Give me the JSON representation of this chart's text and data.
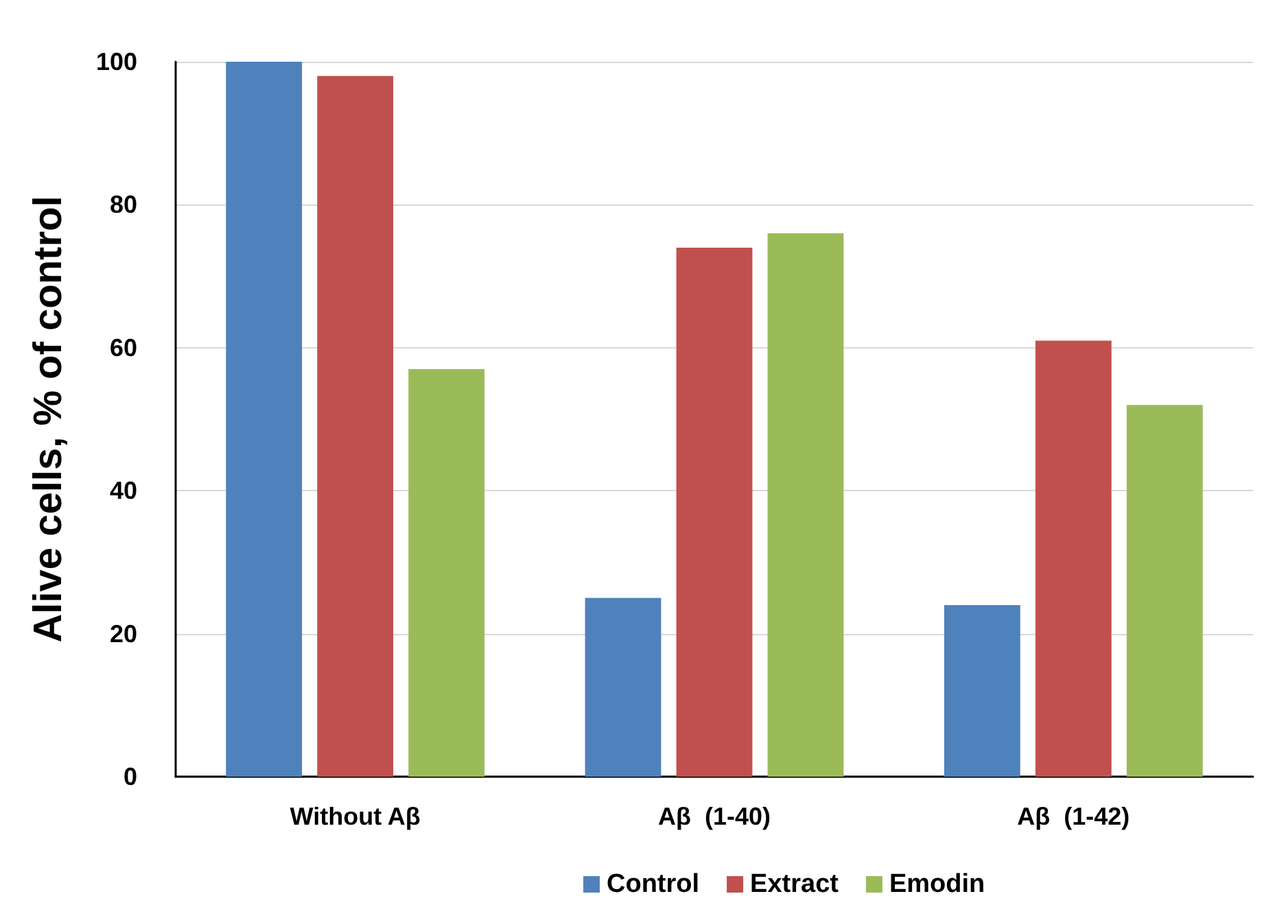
{
  "chart_data": {
    "type": "bar",
    "ylabel": "Alive cells, % of control",
    "categories": [
      "Without Aβ",
      "Aβ  (1-40)",
      "Aβ  (1-42)"
    ],
    "series": [
      {
        "name": "Control",
        "color": "#4f81bd",
        "values": [
          100,
          25,
          24
        ]
      },
      {
        "name": "Extract",
        "color": "#c0504d",
        "values": [
          98,
          74,
          61
        ]
      },
      {
        "name": "Emodin",
        "color": "#9bbb59",
        "values": [
          57,
          76,
          52
        ]
      }
    ],
    "ylim": [
      0,
      100
    ],
    "yticks": [
      0,
      20,
      40,
      60,
      80,
      100
    ],
    "grid": "y",
    "legend": "bottom"
  }
}
